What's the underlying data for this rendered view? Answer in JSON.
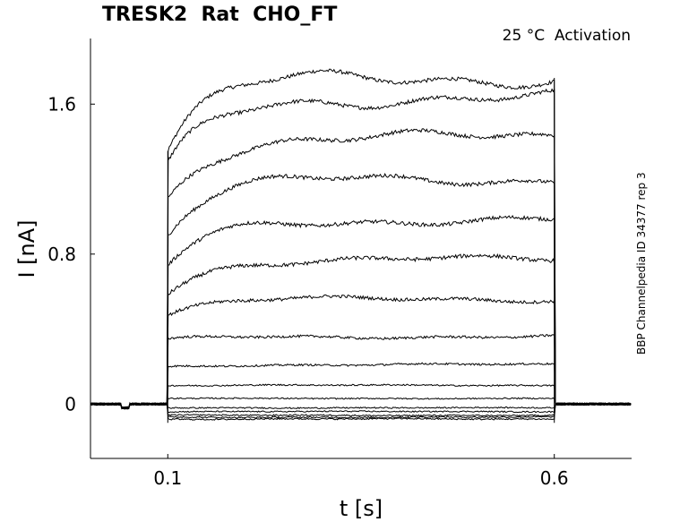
{
  "chart_data": {
    "type": "line",
    "title": "TRESK2  Rat  CHO_FT",
    "annotation": "25 °C  Activation",
    "side_label": "BBP Channelpedia ID 34377 rep 3",
    "xlabel": "t [s]",
    "ylabel": "I [nA]",
    "xlim": [
      0.0,
      0.7
    ],
    "ylim": [
      -0.29,
      1.95
    ],
    "xticks": [
      0.1,
      0.6
    ],
    "xtick_labels": [
      "0.1",
      "0.6"
    ],
    "yticks": [
      0,
      0.8,
      1.6
    ],
    "ytick_labels": [
      "0",
      "0.8",
      "1.6"
    ],
    "grid": false,
    "stimulus_window": [
      0.1,
      0.6
    ],
    "series": [
      {
        "peak": 1.74,
        "initial": 1.35,
        "tau": 0.05
      },
      {
        "peak": 1.63,
        "initial": 1.25,
        "tau": 0.05
      },
      {
        "peak": 1.42,
        "initial": 1.1,
        "tau": 0.05
      },
      {
        "peak": 1.2,
        "initial": 0.9,
        "tau": 0.05
      },
      {
        "peak": 0.98,
        "initial": 0.73,
        "tau": 0.05
      },
      {
        "peak": 0.77,
        "initial": 0.6,
        "tau": 0.05
      },
      {
        "peak": 0.56,
        "initial": 0.48,
        "tau": 0.05
      },
      {
        "peak": 0.36,
        "initial": 0.34,
        "tau": 0.05
      },
      {
        "peak": 0.21,
        "initial": 0.2,
        "tau": 0.05
      },
      {
        "peak": 0.1,
        "initial": 0.1,
        "tau": 0.05
      },
      {
        "peak": 0.03,
        "initial": 0.03,
        "tau": 0.05
      },
      {
        "peak": -0.02,
        "initial": -0.02,
        "tau": 0.05
      },
      {
        "peak": -0.04,
        "initial": -0.04,
        "tau": 0.05
      },
      {
        "peak": -0.06,
        "initial": -0.06,
        "tau": 0.05
      },
      {
        "peak": -0.07,
        "initial": -0.07,
        "tau": 0.05
      },
      {
        "peak": -0.08,
        "initial": -0.08,
        "tau": 0.05
      }
    ]
  }
}
